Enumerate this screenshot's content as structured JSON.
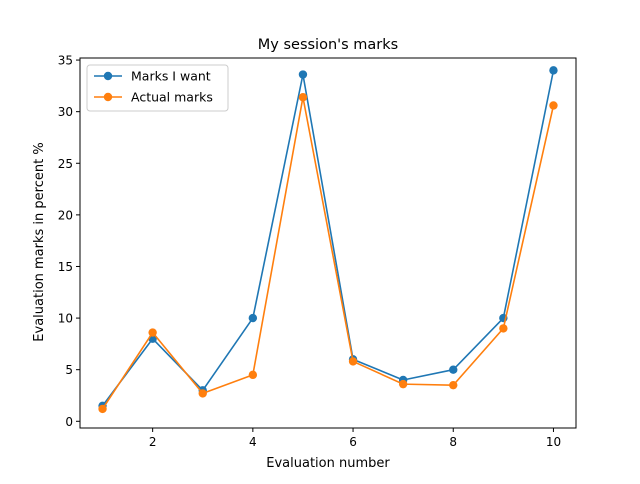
{
  "chart_data": {
    "type": "line",
    "title": "My session's marks",
    "xlabel": "Evaluation number",
    "ylabel": "Evaluation marks in percent %",
    "x": [
      1,
      2,
      3,
      4,
      5,
      6,
      7,
      8,
      9,
      10
    ],
    "xlim": [
      0.55,
      10.45
    ],
    "ylim": [
      -0.65,
      35.2
    ],
    "xticks": [
      2,
      4,
      6,
      8,
      10
    ],
    "yticks": [
      0,
      5,
      10,
      15,
      20,
      25,
      30,
      35
    ],
    "grid": false,
    "legend_position": "top-left",
    "series": [
      {
        "name": "Marks I want",
        "color": "#1f77b4",
        "values": [
          1.5,
          8,
          3,
          10,
          33.6,
          6,
          4,
          5,
          10,
          34
        ]
      },
      {
        "name": "Actual marks",
        "color": "#ff7f0e",
        "values": [
          1.2,
          8.6,
          2.7,
          4.5,
          31.4,
          5.8,
          3.6,
          3.5,
          9,
          30.6
        ]
      }
    ]
  }
}
